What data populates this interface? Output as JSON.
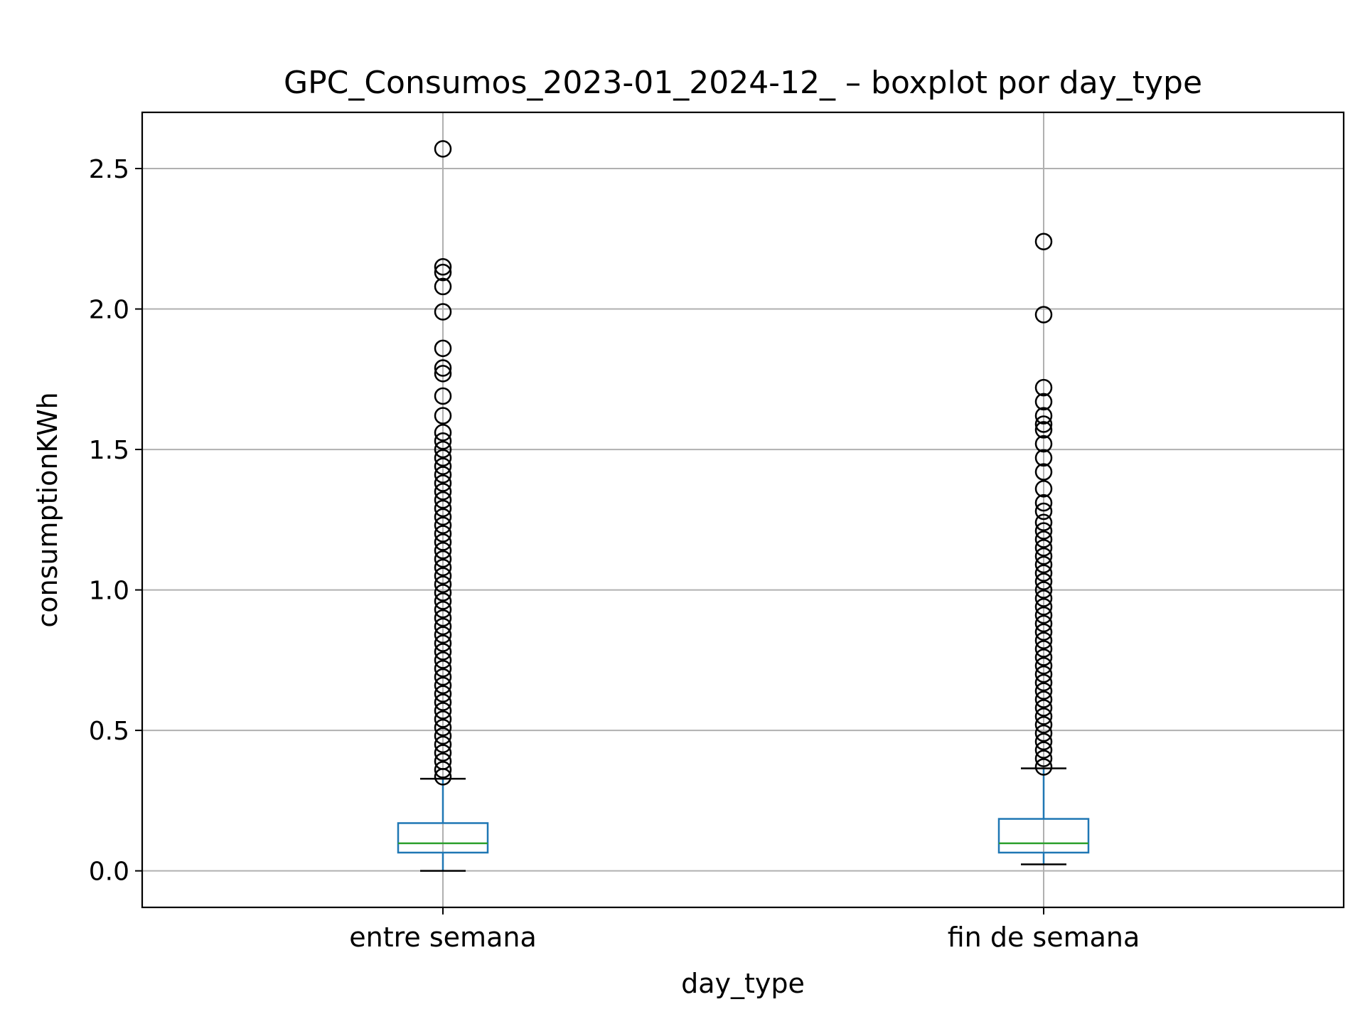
{
  "chart_data": {
    "type": "boxplot",
    "title": "GPC_Consumos_2023-01_2024-12_ – boxplot por day_type",
    "xlabel": "day_type",
    "ylabel": "consumptionKWh",
    "ylim": [
      -0.13,
      2.7
    ],
    "yticks": [
      0.0,
      0.5,
      1.0,
      1.5,
      2.0,
      2.5
    ],
    "ytick_labels": [
      "0.0",
      "0.5",
      "1.0",
      "1.5",
      "2.0",
      "2.5"
    ],
    "grid": true,
    "categories": [
      "entre semana",
      "fin de semana"
    ],
    "boxes": [
      {
        "category": "entre semana",
        "whisker_low": 0.0,
        "q1": 0.065,
        "median": 0.098,
        "q3": 0.17,
        "whisker_high": 0.328,
        "outliers": [
          0.335,
          0.36,
          0.39,
          0.42,
          0.45,
          0.48,
          0.51,
          0.54,
          0.57,
          0.6,
          0.63,
          0.66,
          0.69,
          0.72,
          0.75,
          0.78,
          0.81,
          0.84,
          0.87,
          0.9,
          0.93,
          0.96,
          0.99,
          1.02,
          1.05,
          1.08,
          1.11,
          1.14,
          1.17,
          1.2,
          1.23,
          1.26,
          1.29,
          1.32,
          1.35,
          1.38,
          1.41,
          1.44,
          1.47,
          1.5,
          1.53,
          1.56,
          1.62,
          1.69,
          1.77,
          1.79,
          1.86,
          1.99,
          2.08,
          2.13,
          2.15,
          2.57
        ]
      },
      {
        "category": "fin de semana",
        "whisker_low": 0.023,
        "q1": 0.065,
        "median": 0.098,
        "q3": 0.185,
        "whisker_high": 0.365,
        "outliers": [
          0.37,
          0.4,
          0.43,
          0.46,
          0.49,
          0.52,
          0.55,
          0.58,
          0.61,
          0.64,
          0.67,
          0.7,
          0.73,
          0.76,
          0.79,
          0.82,
          0.85,
          0.88,
          0.91,
          0.94,
          0.97,
          1.0,
          1.03,
          1.06,
          1.09,
          1.12,
          1.15,
          1.18,
          1.21,
          1.24,
          1.28,
          1.31,
          1.36,
          1.42,
          1.47,
          1.52,
          1.57,
          1.59,
          1.62,
          1.67,
          1.72,
          1.98,
          2.24
        ]
      }
    ]
  }
}
